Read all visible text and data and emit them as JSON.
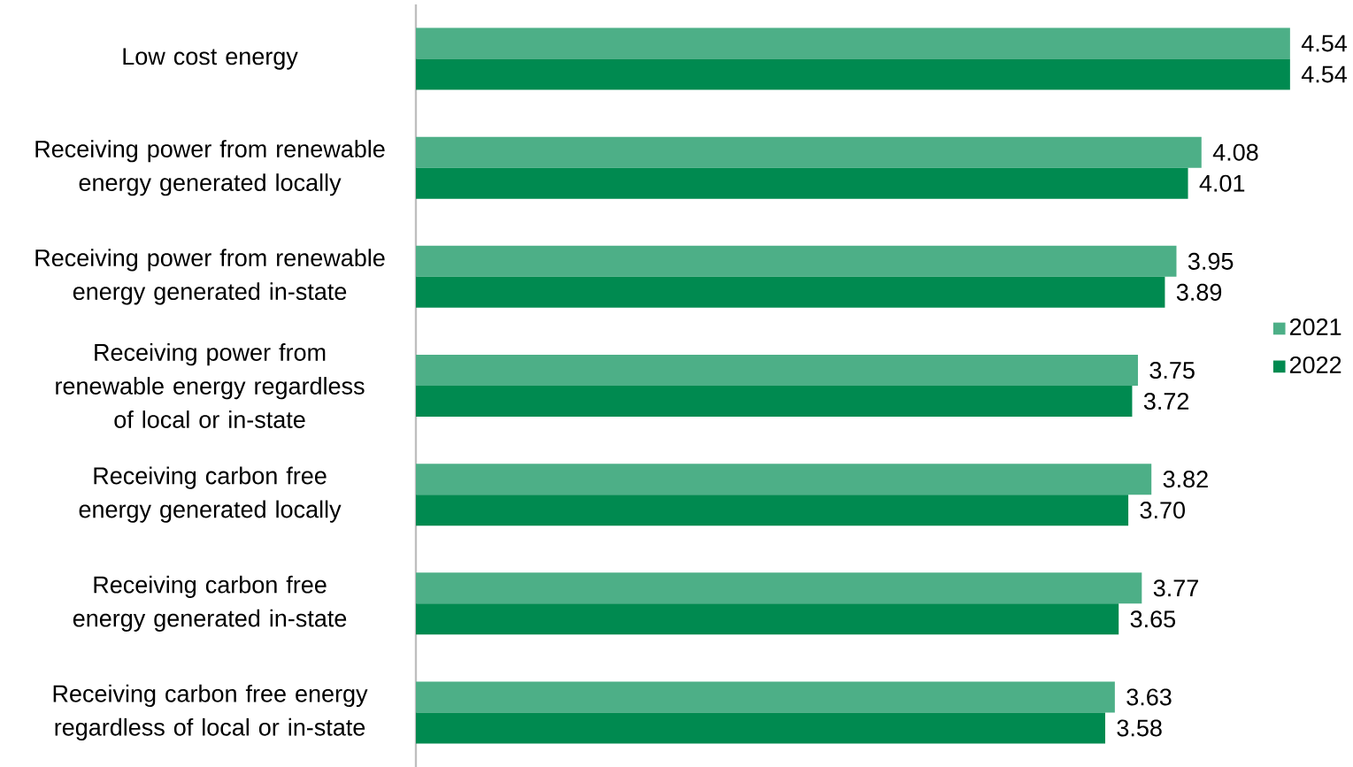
{
  "chart_data": {
    "type": "bar",
    "orientation": "horizontal",
    "categories": [
      "Low cost energy",
      "Receiving power from renewable energy generated locally",
      "Receiving power from renewable energy generated in-state",
      "Receiving power from renewable energy regardless of local or in-state",
      "Receiving carbon free energy generated locally",
      "Receiving carbon free energy generated in-state",
      "Receiving carbon free energy regardless of local or in-state"
    ],
    "series": [
      {
        "name": "2021",
        "color": "#4daf87",
        "values": [
          4.54,
          4.08,
          3.95,
          3.75,
          3.82,
          3.77,
          3.63
        ],
        "value_labels": [
          "4.54",
          "4.08",
          "3.95",
          "3.75",
          "3.82",
          "3.77",
          "3.63"
        ]
      },
      {
        "name": "2022",
        "color": "#008a50",
        "values": [
          4.54,
          4.01,
          3.89,
          3.72,
          3.7,
          3.65,
          3.58
        ],
        "value_labels": [
          "4.54",
          "4.01",
          "3.89",
          "3.72",
          "3.70",
          "3.65",
          "3.58"
        ]
      }
    ],
    "legend": "right"
  }
}
